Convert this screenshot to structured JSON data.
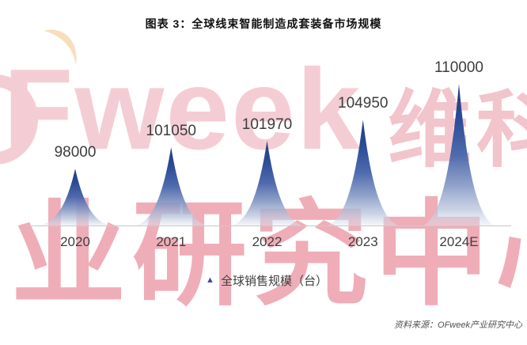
{
  "header": {
    "title": "图表 3：全球线束智能制造成套装备市场规模"
  },
  "chart_data": {
    "type": "area",
    "subtype": "spike-peaks",
    "title": "图表 3：全球线束智能制造成套装备市场规模",
    "categories": [
      "2020",
      "2021",
      "2022",
      "2023",
      "2024E"
    ],
    "series": [
      {
        "name": "全球销售规模（台）",
        "values": [
          98000,
          101050,
          101970,
          104950,
          110000
        ]
      }
    ],
    "xlabel": "",
    "ylabel": "",
    "ylim": [
      90000,
      110000
    ],
    "grid": false,
    "data_labels": true,
    "legend_position": "bottom"
  },
  "legend": {
    "label": "全球销售规模（台）",
    "marker": "triangle-icon",
    "marker_color": "#4547a5"
  },
  "footer": {
    "source": "资料来源：OFweek产业研究中心"
  },
  "watermark": {
    "row1_latin": "Fweek",
    "row1_cjk": "维科",
    "row2": "业研究中心",
    "color_light": "#f4cdd4",
    "color_strong": "#efadb8"
  },
  "colors": {
    "peak_top": "#1e3c80",
    "peak_mid": "#4a66ab",
    "peak_base": "#e0e5f0",
    "axis_line": "#c9c9c9",
    "label_text": "#3d3d3d",
    "crescent": "#f6d9b2"
  }
}
